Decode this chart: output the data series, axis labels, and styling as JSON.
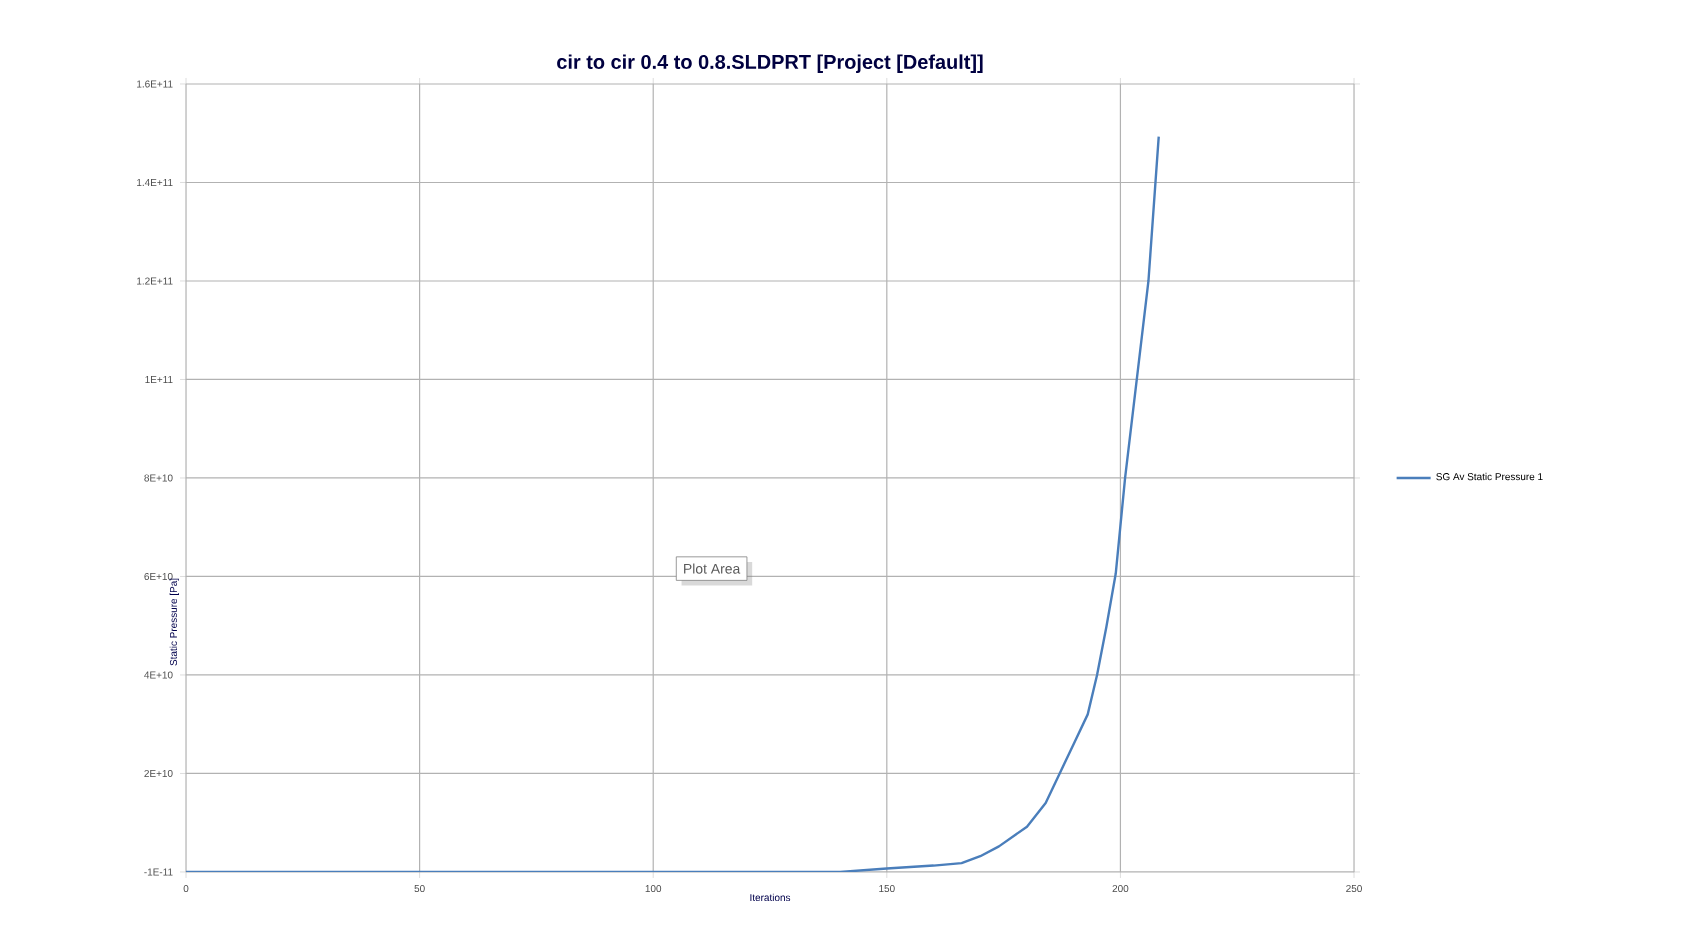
{
  "chart_data": {
    "type": "line",
    "title": "cir to cir 0.4 to 0.8.SLDPRT [Project [Default]]",
    "xlabel": "Iterations",
    "ylabel": "Static Pressure [Pa]",
    "annotations": [
      "Plot Area"
    ],
    "series": [
      {
        "name": "SG Av Static Pressure 1",
        "color": "#4a7ebb",
        "x": [
          0,
          50,
          100,
          140,
          150,
          160,
          166,
          170,
          174,
          180,
          184,
          187,
          190,
          193,
          195,
          197,
          199,
          201,
          203,
          206,
          208.2
        ],
        "values": [
          0,
          0,
          0,
          0,
          700000000.0,
          1300000000.0,
          1800000000.0,
          3200000000.0,
          5200000000.0,
          9200000000.0,
          14000000000.0,
          20000000000.0,
          26000000000.0,
          32000000000.0,
          40000000000.0,
          49800000000.0,
          60600000000.0,
          80000000000.0,
          96000000000.0,
          120000000000.0,
          149300000000.0
        ]
      }
    ],
    "xlim": [
      0,
      250
    ],
    "xticks": [
      0,
      50,
      100,
      150,
      200,
      250
    ],
    "ylim": [
      -1e-11,
      160000000000.0
    ],
    "yticks": [
      {
        "value": -1e-11,
        "label": "-1E-11"
      },
      {
        "value": 20000000000.0,
        "label": "2E+10"
      },
      {
        "value": 40000000000.0,
        "label": "4E+10"
      },
      {
        "value": 60000000000.0,
        "label": "6E+10"
      },
      {
        "value": 80000000000.0,
        "label": "8E+10"
      },
      {
        "value": 100000000000.0,
        "label": "1E+11"
      },
      {
        "value": 120000000000.0,
        "label": "1.2E+11"
      },
      {
        "value": 140000000000.0,
        "label": "1.4E+11"
      },
      {
        "value": 160000000000.0,
        "label": "1.6E+11"
      }
    ],
    "grid": true,
    "legend": "right",
    "marker": "none",
    "line_style": "solid"
  }
}
